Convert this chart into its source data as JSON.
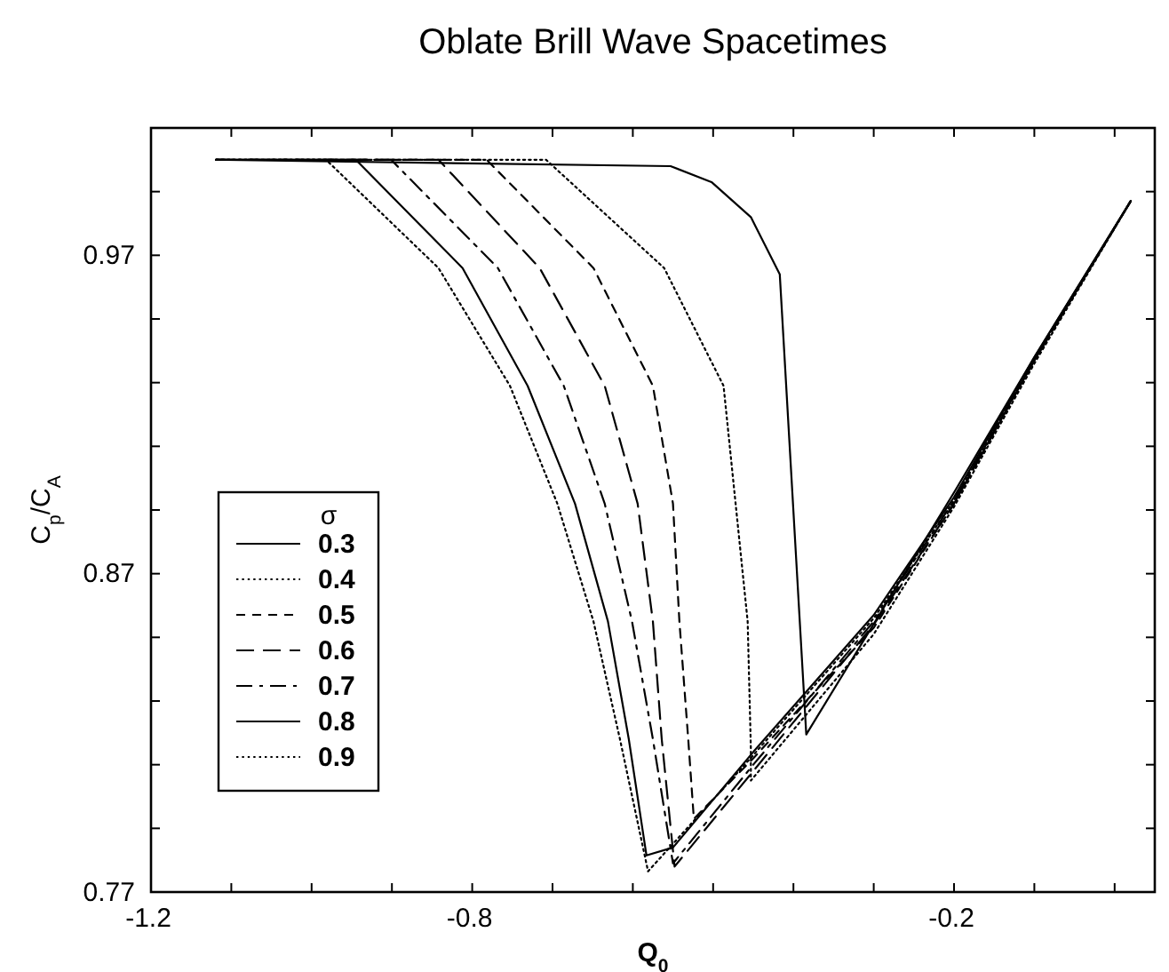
{
  "chart_data": {
    "type": "line",
    "title": "Oblate Brill Wave Spacetimes",
    "xlabel": "Q$_{0}$",
    "ylabel": "C$_{p}$/C$_{A}$",
    "legend_title": "σ",
    "legend": "left",
    "grid": false,
    "marker": "none",
    "xlim": [
      -1.2,
      0.05
    ],
    "ylim": [
      0.77,
      1.01
    ],
    "xticks": [
      -1.2,
      {
        "value": -1.1,
        "label": null
      },
      {
        "value": -1.0,
        "label": null
      },
      {
        "value": -0.9,
        "label": null
      },
      -0.8,
      {
        "value": -0.7,
        "label": null
      },
      {
        "value": -0.6,
        "label": null
      },
      {
        "value": -0.5,
        "label": null
      },
      {
        "value": -0.4,
        "label": null
      },
      {
        "value": -0.3,
        "label": null
      },
      -0.2,
      {
        "value": -0.1,
        "label": null
      },
      {
        "value": 0,
        "label": null
      }
    ],
    "yticks": [
      0.77,
      {
        "value": 0.79,
        "label": null
      },
      {
        "value": 0.81,
        "label": null
      },
      {
        "value": 0.83,
        "label": null
      },
      {
        "value": 0.85,
        "label": null
      },
      0.87,
      {
        "value": 0.89,
        "label": null
      },
      {
        "value": 0.91,
        "label": null
      },
      {
        "value": 0.93,
        "label": null
      },
      {
        "value": 0.95,
        "label": null
      },
      0.97,
      {
        "value": 0.99,
        "label": null
      }
    ],
    "series": [
      {
        "name": "0.3",
        "color": "#000000",
        "line_style": "solid",
        "x": [
          -1.119,
          -0.553,
          -0.502,
          -0.453,
          -0.417,
          -0.384,
          -0.2,
          -0.1,
          0.02
        ],
        "values": [
          1.0,
          0.998,
          0.993,
          0.982,
          0.964,
          0.8195,
          0.8955,
          0.938,
          0.987
        ]
      },
      {
        "name": "0.4",
        "color": "#000000",
        "line_style": "dotted",
        "x": [
          -1.119,
          -0.708,
          -0.561,
          -0.487,
          -0.472,
          -0.457,
          -0.453,
          -0.453,
          -0.3,
          -0.2,
          -0.1,
          0.02
        ],
        "values": [
          1.0,
          1.0,
          0.966,
          0.929,
          0.892,
          0.855,
          0.815,
          0.805,
          0.851,
          0.891,
          0.936,
          0.987
        ]
      },
      {
        "name": "0.5",
        "color": "#000000",
        "line_style": "dashed",
        "x": [
          -1.119,
          -0.782,
          -0.649,
          -0.575,
          -0.55,
          -0.542,
          -0.531,
          -0.524,
          -0.45,
          -0.3,
          -0.2,
          -0.1,
          0.02
        ],
        "values": [
          1.0,
          1.0,
          0.966,
          0.929,
          0.892,
          0.855,
          0.818,
          0.793,
          0.812,
          0.853,
          0.892,
          0.937,
          0.987
        ]
      },
      {
        "name": "0.6",
        "color": "#000000",
        "line_style": "longdash",
        "x": [
          -1.119,
          -0.842,
          -0.716,
          -0.635,
          -0.594,
          -0.575,
          -0.564,
          -0.548,
          -0.45,
          -0.3,
          -0.2,
          -0.1,
          0.02
        ],
        "values": [
          1.0,
          1.0,
          0.966,
          0.929,
          0.892,
          0.855,
          0.818,
          0.778,
          0.808,
          0.854,
          0.892,
          0.937,
          0.987
        ]
      },
      {
        "name": "0.7",
        "color": "#000000",
        "line_style": "dashdot",
        "x": [
          -1.119,
          -0.901,
          -0.768,
          -0.686,
          -0.635,
          -0.601,
          -0.575,
          -0.55,
          -0.45,
          -0.3,
          -0.2,
          -0.1,
          0.02
        ],
        "values": [
          1.0,
          1.0,
          0.966,
          0.929,
          0.892,
          0.855,
          0.818,
          0.779,
          0.81,
          0.855,
          0.893,
          0.937,
          0.987
        ]
      },
      {
        "name": "0.8",
        "color": "#000000",
        "line_style": "solid",
        "x": [
          -1.119,
          -0.945,
          -0.812,
          -0.731,
          -0.672,
          -0.631,
          -0.605,
          -0.583,
          -0.55,
          -0.45,
          -0.3,
          -0.2,
          -0.1,
          0.02
        ],
        "values": [
          1.0,
          1.0,
          0.966,
          0.929,
          0.892,
          0.855,
          0.818,
          0.7815,
          0.784,
          0.814,
          0.857,
          0.894,
          0.938,
          0.987
        ]
      },
      {
        "name": "0.9",
        "color": "#000000",
        "line_style": "dotted",
        "x": [
          -1.119,
          -0.982,
          -0.842,
          -0.753,
          -0.694,
          -0.649,
          -0.616,
          -0.581,
          -0.45,
          -0.3,
          -0.2,
          -0.1,
          0.02
        ],
        "values": [
          1.0,
          1.0,
          0.966,
          0.929,
          0.892,
          0.855,
          0.818,
          0.7765,
          0.813,
          0.856,
          0.893,
          0.937,
          0.987
        ]
      }
    ]
  }
}
